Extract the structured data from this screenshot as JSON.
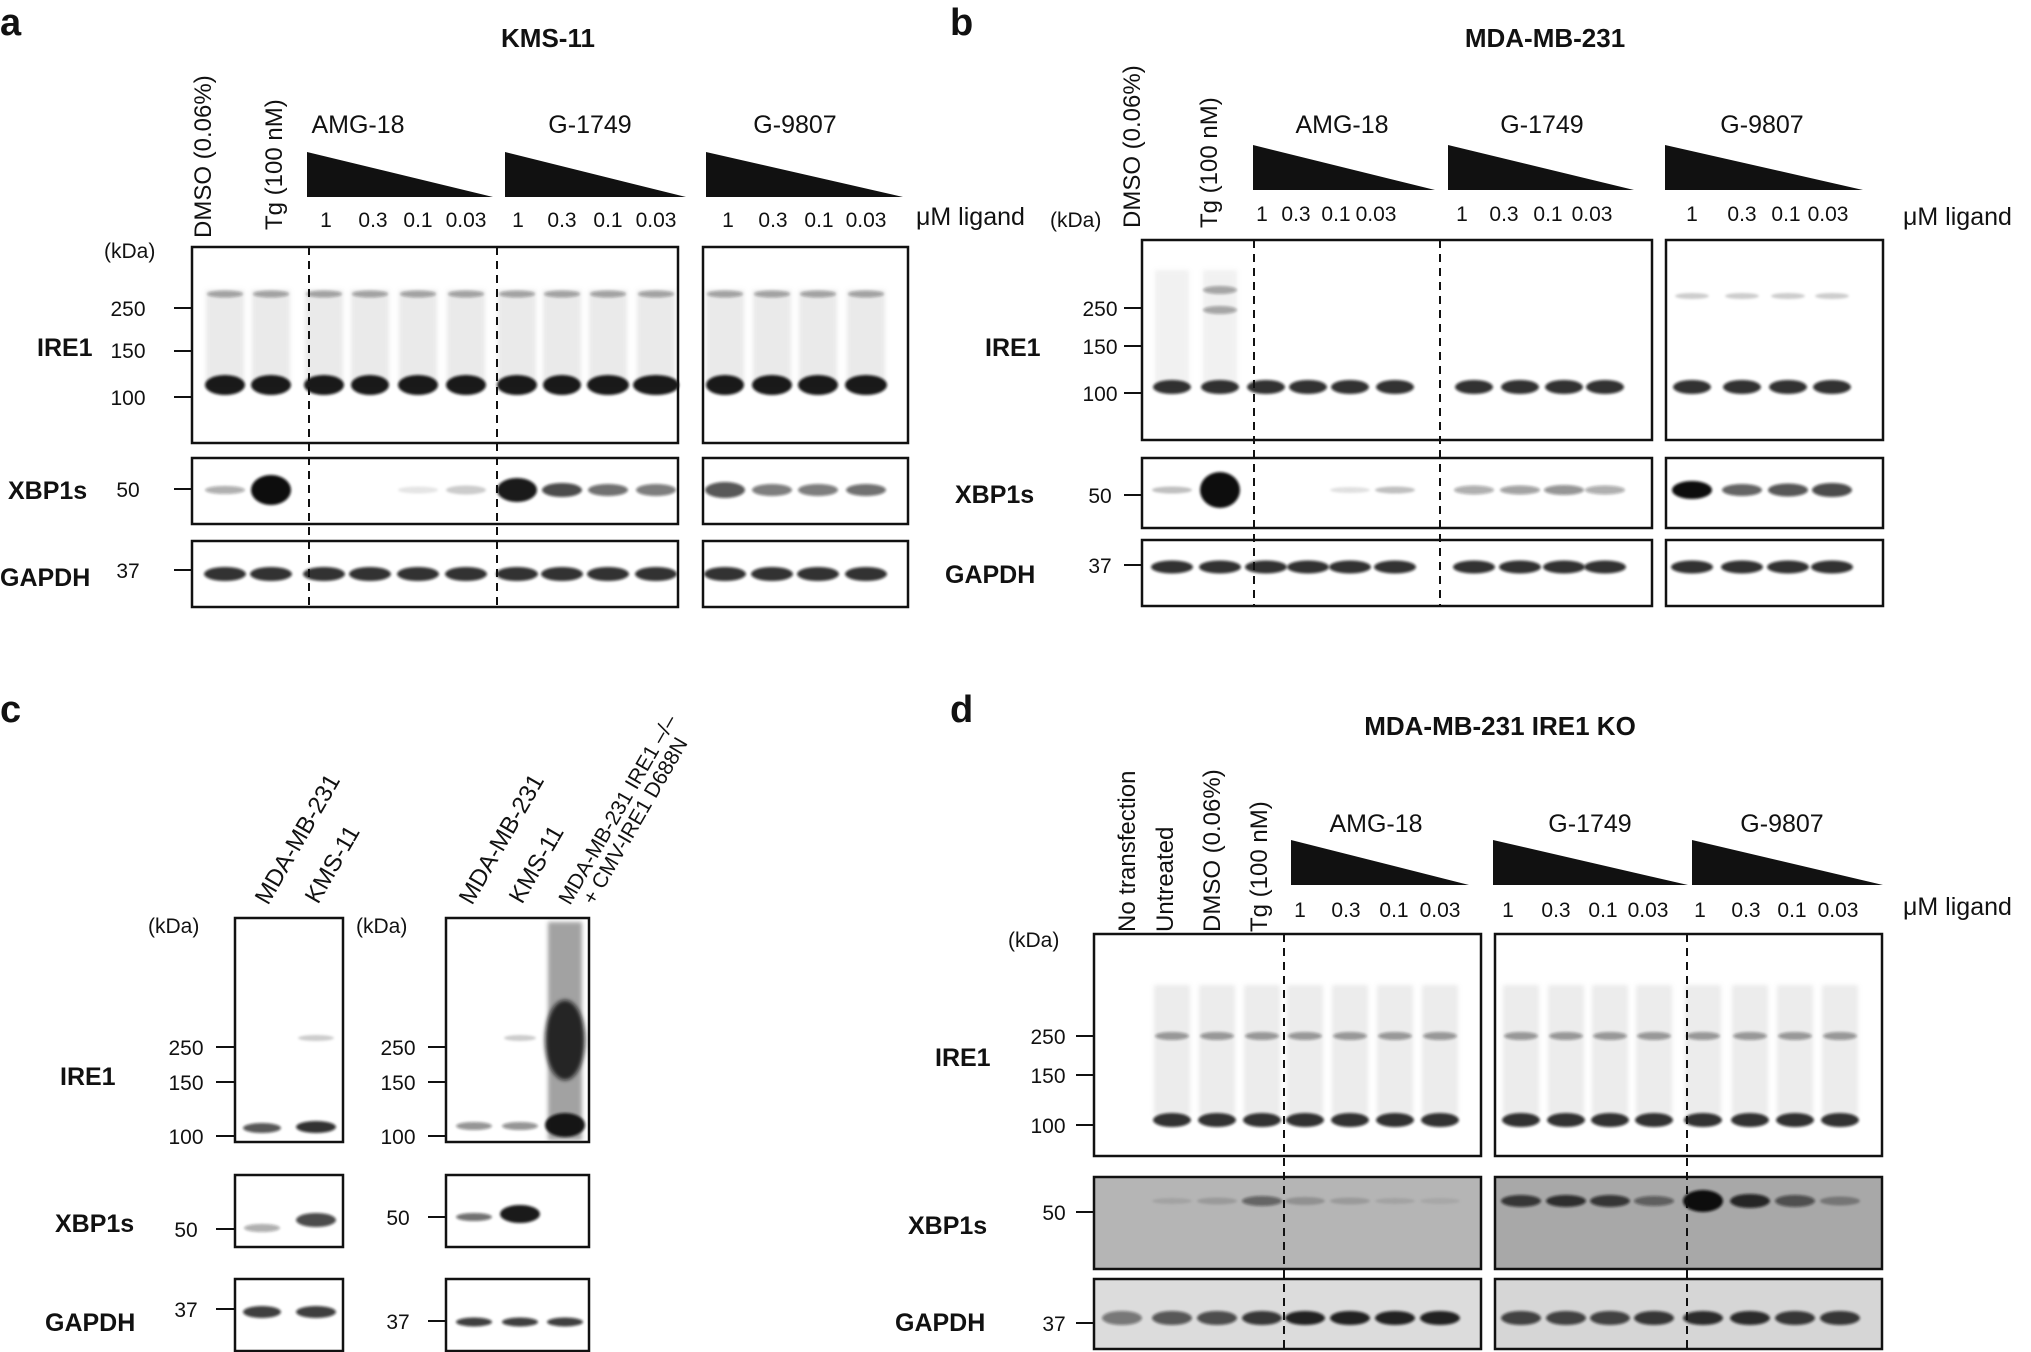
{
  "colors": {
    "band": "#111111",
    "frame": "#111111",
    "blot_bg": "#ffffff"
  },
  "common": {
    "kda_label": "(kDa)",
    "unit_label": "μM ligand",
    "concentrations": [
      "1",
      "0.3",
      "0.1",
      "0.03"
    ]
  },
  "panels": {
    "a": {
      "letter": "a",
      "title": "KMS-11",
      "controls": [
        "DMSO (0.06%)",
        "Tg (100 nM)"
      ],
      "drugs": [
        "AMG-18",
        "G-1749",
        "G-9807"
      ],
      "proteins": [
        "IRE1",
        "XBP1s",
        "GAPDH"
      ],
      "markers": [
        "250",
        "150",
        "100",
        "50",
        "37"
      ]
    },
    "b": {
      "letter": "b",
      "title": "MDA-MB-231",
      "controls": [
        "DMSO (0.06%)",
        "Tg (100 nM)"
      ],
      "drugs": [
        "AMG-18",
        "G-1749",
        "G-9807"
      ],
      "proteins": [
        "IRE1",
        "XBP1s",
        "GAPDH"
      ],
      "markers": [
        "250",
        "150",
        "100",
        "50",
        "37"
      ]
    },
    "c": {
      "letter": "c",
      "left_lanes": [
        "MDA-MB-231",
        "KMS-11"
      ],
      "right_lanes": [
        "MDA-MB-231",
        "KMS-11",
        "MDA-MB-231 IRE1 –/–",
        "+ CMV-IRE1 D688N"
      ],
      "proteins": [
        "IRE1",
        "XBP1s",
        "GAPDH"
      ],
      "markers": [
        "250",
        "150",
        "100",
        "50",
        "37"
      ]
    },
    "d": {
      "letter": "d",
      "title": "MDA-MB-231 IRE1 KO",
      "controls": [
        "No transfection",
        "Untreated",
        "DMSO (0.06%)",
        "Tg (100 nM)"
      ],
      "drugs": [
        "AMG-18",
        "G-1749",
        "G-9807"
      ],
      "proteins": [
        "IRE1",
        "XBP1s",
        "GAPDH"
      ],
      "markers": [
        "250",
        "150",
        "100",
        "50",
        "37"
      ]
    }
  }
}
